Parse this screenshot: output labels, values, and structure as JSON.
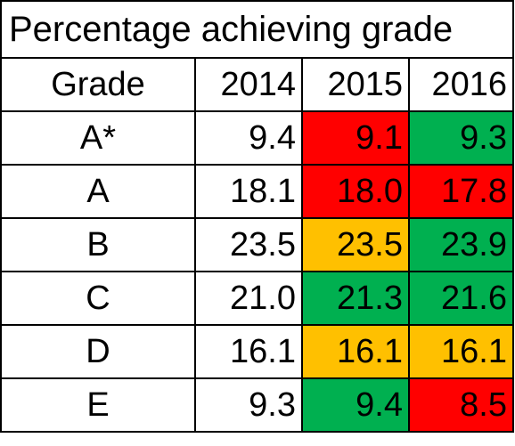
{
  "chart_data": {
    "type": "table",
    "title": "Percentage achieving grade",
    "columns": [
      "Grade",
      "2014",
      "2015",
      "2016"
    ],
    "status_colors": {
      "red": "#ff0000",
      "amber": "#ffc000",
      "green": "#00b050",
      "none": "#ffffff"
    },
    "rows": [
      {
        "grade": "A*",
        "values": [
          "9.4",
          "9.1",
          "9.3"
        ],
        "status": [
          "none",
          "red",
          "green"
        ]
      },
      {
        "grade": "A",
        "values": [
          "18.1",
          "18.0",
          "17.8"
        ],
        "status": [
          "none",
          "red",
          "red"
        ]
      },
      {
        "grade": "B",
        "values": [
          "23.5",
          "23.5",
          "23.9"
        ],
        "status": [
          "none",
          "amber",
          "green"
        ]
      },
      {
        "grade": "C",
        "values": [
          "21.0",
          "21.3",
          "21.6"
        ],
        "status": [
          "none",
          "green",
          "green"
        ]
      },
      {
        "grade": "D",
        "values": [
          "16.1",
          "16.1",
          "16.1"
        ],
        "status": [
          "none",
          "amber",
          "amber"
        ]
      },
      {
        "grade": "E",
        "values": [
          "9.3",
          "9.4",
          "8.5"
        ],
        "status": [
          "none",
          "green",
          "red"
        ]
      }
    ]
  }
}
